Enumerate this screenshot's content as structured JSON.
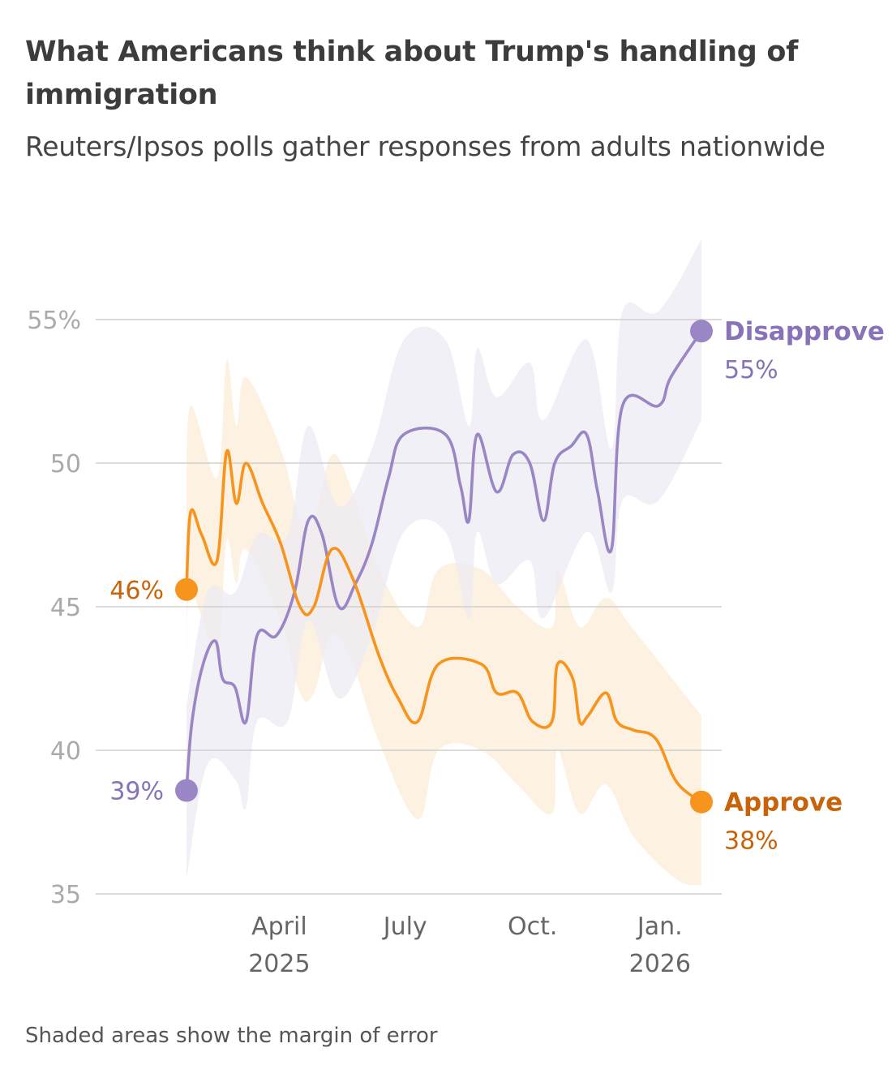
{
  "title": "What Americans think about Trump's handling of immigration",
  "subtitle": "Reuters/Ipsos polls gather responses from adults nationwide",
  "footnote": "Shaded areas show the margin of error",
  "colors": {
    "approve": "#f7941d",
    "approve_text": "#c8630a",
    "approve_band": "#fdeedd",
    "disapprove": "#9b86c5",
    "disapprove_text": "#8872b8",
    "disapprove_band": "#ecebf3",
    "grid": "#cfcfcf",
    "axis_text": "#aaaaaa",
    "xaxis_text": "#666666"
  },
  "chart_data": {
    "type": "line",
    "title": "What Americans think about Trump's handling of immigration",
    "subtitle": "Reuters/Ipsos polls gather responses from adults nationwide",
    "xlabel": "",
    "ylabel": "",
    "ylim": [
      35,
      57
    ],
    "xlim": [
      "2025-01-24",
      "2026-02-15"
    ],
    "yticks": [
      {
        "value": 55,
        "label": "55%"
      },
      {
        "value": 50,
        "label": "50"
      },
      {
        "value": 45,
        "label": "45"
      },
      {
        "value": 40,
        "label": "40"
      },
      {
        "value": 35,
        "label": "35"
      }
    ],
    "xticks": [
      {
        "date": "2025-04-01",
        "line1": "April",
        "line2": "2025"
      },
      {
        "date": "2025-07-01",
        "line1": "July",
        "line2": ""
      },
      {
        "date": "2025-10-01",
        "line1": "Oct.",
        "line2": ""
      },
      {
        "date": "2026-01-01",
        "line1": "Jan.",
        "line2": "2026"
      }
    ],
    "grid": true,
    "band_note": "Shaded areas show the margin of error",
    "series": [
      {
        "name": "Disapprove",
        "start_label": "39%",
        "end_label": "55%",
        "points": [
          [
            "2025-01-24",
            38.6
          ],
          [
            "2025-01-28",
            41.0
          ],
          [
            "2025-02-05",
            43.0
          ],
          [
            "2025-02-14",
            43.8
          ],
          [
            "2025-02-19",
            42.5
          ],
          [
            "2025-02-28",
            42.2
          ],
          [
            "2025-03-08",
            41.0
          ],
          [
            "2025-03-16",
            44.0
          ],
          [
            "2025-03-30",
            44.0
          ],
          [
            "2025-04-12",
            45.5
          ],
          [
            "2025-04-22",
            48.0
          ],
          [
            "2025-05-02",
            47.5
          ],
          [
            "2025-05-14",
            45.0
          ],
          [
            "2025-05-26",
            45.8
          ],
          [
            "2025-06-07",
            47.2
          ],
          [
            "2025-06-19",
            49.5
          ],
          [
            "2025-06-30",
            51.0
          ],
          [
            "2025-07-30",
            51.0
          ],
          [
            "2025-08-10",
            49.2
          ],
          [
            "2025-08-16",
            48.0
          ],
          [
            "2025-08-22",
            51.0
          ],
          [
            "2025-09-05",
            49.0
          ],
          [
            "2025-09-17",
            50.3
          ],
          [
            "2025-09-29",
            50.0
          ],
          [
            "2025-10-09",
            48.0
          ],
          [
            "2025-10-17",
            50.0
          ],
          [
            "2025-10-29",
            50.6
          ],
          [
            "2025-11-09",
            51.0
          ],
          [
            "2025-11-17",
            49.0
          ],
          [
            "2025-11-27",
            47.0
          ],
          [
            "2025-12-05",
            52.0
          ],
          [
            "2025-12-31",
            52.0
          ],
          [
            "2026-01-09",
            53.0
          ],
          [
            "2026-01-31",
            54.6
          ]
        ],
        "band_upper": [
          [
            "2025-01-24",
            41.5
          ],
          [
            "2025-02-08",
            45.5
          ],
          [
            "2025-02-28",
            45.5
          ],
          [
            "2025-03-16",
            47.5
          ],
          [
            "2025-04-07",
            47.5
          ],
          [
            "2025-04-22",
            51.3
          ],
          [
            "2025-05-14",
            48.5
          ],
          [
            "2025-06-07",
            50.5
          ],
          [
            "2025-06-30",
            54.3
          ],
          [
            "2025-07-30",
            54.3
          ],
          [
            "2025-08-16",
            51.3
          ],
          [
            "2025-08-22",
            54.0
          ],
          [
            "2025-09-05",
            52.3
          ],
          [
            "2025-09-29",
            53.5
          ],
          [
            "2025-10-09",
            51.5
          ],
          [
            "2025-11-09",
            54.3
          ],
          [
            "2025-11-27",
            50.5
          ],
          [
            "2025-12-05",
            55.3
          ],
          [
            "2025-12-31",
            55.3
          ],
          [
            "2026-01-31",
            57.8
          ]
        ],
        "band_lower": [
          [
            "2025-01-24",
            35.5
          ],
          [
            "2025-02-08",
            39.5
          ],
          [
            "2025-02-28",
            39.0
          ],
          [
            "2025-03-08",
            38.0
          ],
          [
            "2025-03-16",
            41.0
          ],
          [
            "2025-04-07",
            41.0
          ],
          [
            "2025-04-22",
            44.5
          ],
          [
            "2025-05-14",
            41.8
          ],
          [
            "2025-06-07",
            44.0
          ],
          [
            "2025-06-30",
            47.6
          ],
          [
            "2025-07-30",
            47.6
          ],
          [
            "2025-08-16",
            44.6
          ],
          [
            "2025-08-22",
            47.6
          ],
          [
            "2025-09-05",
            45.8
          ],
          [
            "2025-09-29",
            46.6
          ],
          [
            "2025-10-09",
            44.6
          ],
          [
            "2025-11-09",
            47.6
          ],
          [
            "2025-11-27",
            45.5
          ],
          [
            "2025-12-05",
            48.7
          ],
          [
            "2025-12-31",
            48.7
          ],
          [
            "2026-01-31",
            51.5
          ]
        ]
      },
      {
        "name": "Approve",
        "start_label": "46%",
        "end_label": "38%",
        "points": [
          [
            "2025-01-24",
            45.6
          ],
          [
            "2025-01-27",
            48.3
          ],
          [
            "2025-02-04",
            47.5
          ],
          [
            "2025-02-15",
            46.6
          ],
          [
            "2025-02-22",
            50.4
          ],
          [
            "2025-03-01",
            48.6
          ],
          [
            "2025-03-08",
            50.0
          ],
          [
            "2025-03-20",
            48.6
          ],
          [
            "2025-04-02",
            47.2
          ],
          [
            "2025-04-16",
            45.0
          ],
          [
            "2025-04-26",
            45.0
          ],
          [
            "2025-05-09",
            47.0
          ],
          [
            "2025-05-24",
            46.0
          ],
          [
            "2025-06-12",
            43.3
          ],
          [
            "2025-06-26",
            41.8
          ],
          [
            "2025-07-10",
            41.0
          ],
          [
            "2025-07-25",
            43.0
          ],
          [
            "2025-08-25",
            43.0
          ],
          [
            "2025-09-05",
            42.0
          ],
          [
            "2025-09-20",
            42.0
          ],
          [
            "2025-10-01",
            41.0
          ],
          [
            "2025-10-15",
            41.0
          ],
          [
            "2025-10-19",
            43.0
          ],
          [
            "2025-10-30",
            42.5
          ],
          [
            "2025-11-04",
            41.0
          ],
          [
            "2025-11-10",
            41.2
          ],
          [
            "2025-11-23",
            42.0
          ],
          [
            "2025-12-01",
            41.0
          ],
          [
            "2025-12-13",
            40.7
          ],
          [
            "2025-12-29",
            40.4
          ],
          [
            "2026-01-13",
            38.9
          ],
          [
            "2026-01-31",
            38.2
          ]
        ],
        "band_upper": [
          [
            "2025-01-24",
            48.5
          ],
          [
            "2025-01-27",
            52.0
          ],
          [
            "2025-02-15",
            49.5
          ],
          [
            "2025-02-22",
            53.6
          ],
          [
            "2025-03-01",
            51.3
          ],
          [
            "2025-03-08",
            53.0
          ],
          [
            "2025-04-02",
            50.5
          ],
          [
            "2025-04-16",
            48.0
          ],
          [
            "2025-04-26",
            48.0
          ],
          [
            "2025-05-09",
            50.3
          ],
          [
            "2025-05-24",
            49.0
          ],
          [
            "2025-06-12",
            46.3
          ],
          [
            "2025-07-10",
            44.3
          ],
          [
            "2025-07-25",
            46.3
          ],
          [
            "2025-08-25",
            46.3
          ],
          [
            "2025-09-20",
            45.0
          ],
          [
            "2025-10-15",
            44.3
          ],
          [
            "2025-10-19",
            46.3
          ],
          [
            "2025-11-04",
            44.3
          ],
          [
            "2025-11-23",
            45.3
          ],
          [
            "2025-12-13",
            44.2
          ],
          [
            "2026-01-31",
            41.2
          ]
        ],
        "band_lower": [
          [
            "2025-01-24",
            43.0
          ],
          [
            "2025-01-27",
            45.5
          ],
          [
            "2025-02-15",
            43.5
          ],
          [
            "2025-02-22",
            47.3
          ],
          [
            "2025-03-01",
            45.8
          ],
          [
            "2025-03-08",
            47.0
          ],
          [
            "2025-04-02",
            44.5
          ],
          [
            "2025-04-16",
            42.0
          ],
          [
            "2025-04-26",
            42.0
          ],
          [
            "2025-05-09",
            44.0
          ],
          [
            "2025-05-24",
            43.0
          ],
          [
            "2025-06-12",
            40.3
          ],
          [
            "2025-07-10",
            37.6
          ],
          [
            "2025-07-25",
            40.0
          ],
          [
            "2025-08-25",
            40.0
          ],
          [
            "2025-09-20",
            38.8
          ],
          [
            "2025-10-15",
            37.8
          ],
          [
            "2025-10-19",
            40.0
          ],
          [
            "2025-11-04",
            37.8
          ],
          [
            "2025-11-23",
            38.8
          ],
          [
            "2025-12-13",
            37.0
          ],
          [
            "2026-01-13",
            35.5
          ],
          [
            "2026-01-31",
            35.3
          ]
        ]
      }
    ]
  }
}
